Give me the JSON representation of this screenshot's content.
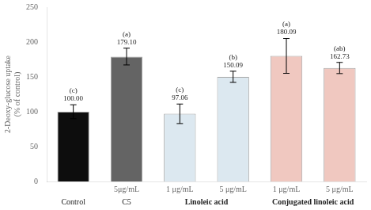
{
  "chart_data": {
    "type": "bar",
    "ylabel": "2-Deoxy-glucose uptake\n(% of control)",
    "categories": [
      null,
      "5μg/mL",
      "1 μg/mL",
      "5 μg/mL",
      "1 μg/mL",
      "5 μg/mL"
    ],
    "groups": [
      {
        "name": "Control",
        "size": 1
      },
      {
        "name": "C5",
        "size": 1
      },
      {
        "name": "Linoleic acid",
        "size": 2
      },
      {
        "name": "Conjugated linoleic acid",
        "size": 2
      }
    ],
    "values": [
      100.0,
      179.1,
      97.06,
      150.09,
      180.09,
      162.73
    ],
    "value_labels": [
      "100.00",
      "179.10",
      "97.06",
      "150.09",
      "180.09",
      "162.73"
    ],
    "errors": [
      10,
      12,
      14,
      8,
      25,
      8
    ],
    "letters": [
      "(c)",
      "(a)",
      "(c)",
      "(b)",
      "(a)",
      "(ab)"
    ],
    "colors": [
      "#0d0d0d",
      "#646464",
      "#dce8f0",
      "#dce8f0",
      "#f0c8c0",
      "#f0c8c0"
    ],
    "ylim": [
      0,
      250
    ],
    "yticks": [
      0,
      50,
      100,
      150,
      200,
      250
    ],
    "grid": false,
    "data_labels": true
  }
}
